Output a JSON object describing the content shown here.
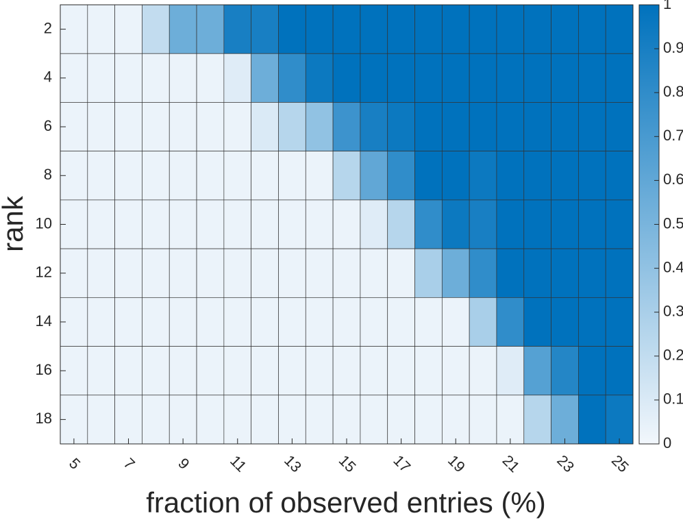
{
  "chart_data": {
    "type": "heatmap",
    "xlabel": "fraction of observed entries (%)",
    "ylabel": "rank",
    "x": [
      5,
      6,
      7,
      8,
      9,
      10,
      11,
      12,
      13,
      14,
      15,
      16,
      17,
      18,
      19,
      20,
      21,
      22,
      23,
      24,
      25
    ],
    "xticks": [
      5,
      7,
      9,
      11,
      13,
      15,
      17,
      19,
      21,
      23,
      25
    ],
    "y": [
      2,
      4,
      6,
      8,
      10,
      12,
      14,
      16,
      18
    ],
    "yticks": [
      2,
      4,
      6,
      8,
      10,
      12,
      14,
      16,
      18
    ],
    "z": [
      [
        0.03,
        0.03,
        0.03,
        0.2,
        0.55,
        0.55,
        0.9,
        0.9,
        1,
        1,
        1,
        1,
        1,
        1,
        1,
        1,
        1,
        1,
        1,
        1,
        1
      ],
      [
        0.03,
        0.03,
        0.03,
        0.03,
        0.03,
        0.03,
        0.08,
        0.55,
        0.8,
        0.95,
        1,
        1,
        1,
        1,
        1,
        1,
        1,
        1,
        1,
        1,
        1
      ],
      [
        0.03,
        0.03,
        0.03,
        0.03,
        0.03,
        0.03,
        0.03,
        0.1,
        0.25,
        0.4,
        0.75,
        0.9,
        0.95,
        1,
        1,
        1,
        1,
        1,
        1,
        1,
        1
      ],
      [
        0.03,
        0.03,
        0.03,
        0.03,
        0.03,
        0.03,
        0.03,
        0.03,
        0.03,
        0.03,
        0.25,
        0.6,
        0.8,
        1,
        1,
        0.95,
        1,
        1,
        1,
        1,
        1
      ],
      [
        0.03,
        0.03,
        0.03,
        0.03,
        0.03,
        0.03,
        0.03,
        0.03,
        0.03,
        0.03,
        0.03,
        0.08,
        0.25,
        0.8,
        0.95,
        0.9,
        1,
        1,
        1,
        1,
        1
      ],
      [
        0.03,
        0.03,
        0.03,
        0.03,
        0.03,
        0.03,
        0.03,
        0.03,
        0.03,
        0.03,
        0.03,
        0.03,
        0.03,
        0.3,
        0.55,
        0.8,
        1,
        1,
        1,
        1,
        1
      ],
      [
        0.03,
        0.03,
        0.03,
        0.03,
        0.03,
        0.03,
        0.03,
        0.03,
        0.03,
        0.03,
        0.03,
        0.03,
        0.03,
        0.03,
        0.03,
        0.3,
        0.8,
        1,
        1,
        1,
        1
      ],
      [
        0.03,
        0.03,
        0.03,
        0.03,
        0.03,
        0.03,
        0.03,
        0.03,
        0.03,
        0.03,
        0.03,
        0.03,
        0.03,
        0.03,
        0.03,
        0.03,
        0.08,
        0.65,
        0.85,
        1,
        1
      ],
      [
        0.03,
        0.03,
        0.03,
        0.03,
        0.03,
        0.03,
        0.03,
        0.03,
        0.03,
        0.03,
        0.03,
        0.03,
        0.03,
        0.03,
        0.03,
        0.03,
        0.03,
        0.25,
        0.55,
        1,
        0.95
      ]
    ],
    "colormap": [
      "#f2f7fc",
      "#0072bd"
    ],
    "clim": [
      0,
      1
    ],
    "cticks": [
      0,
      0.1,
      0.2,
      0.3,
      0.4,
      0.5,
      0.6,
      0.7,
      0.8,
      0.9,
      1
    ]
  }
}
